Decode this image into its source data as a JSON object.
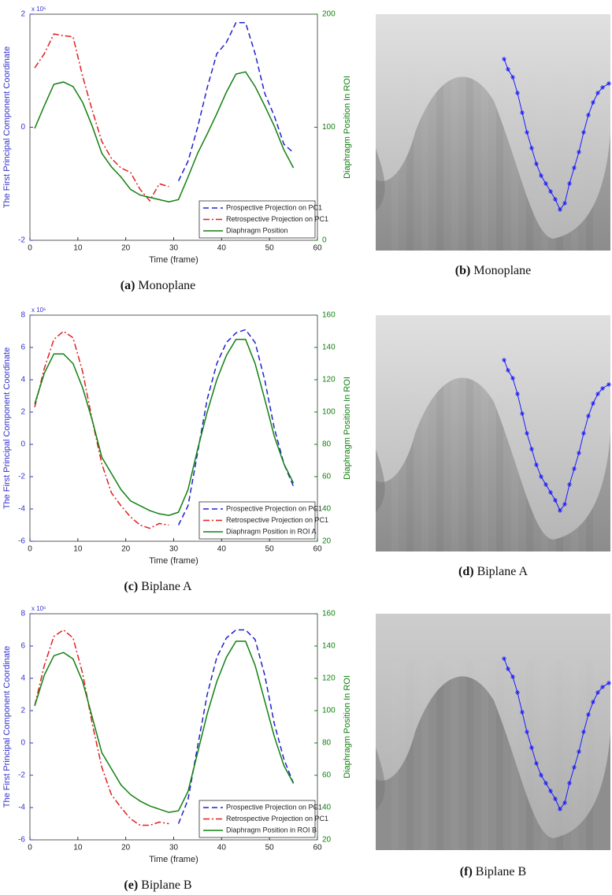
{
  "chart_data": [
    {
      "type": "line",
      "caption_label": "(a)",
      "caption": "Monoplane",
      "exponent_label": "x 10⁶",
      "ylabel": "The First Principal Component Coordinate",
      "y2label": "Diaphragm Position In ROI",
      "xlabel": "Time (frame)",
      "xlim": [
        0,
        60
      ],
      "xticks": [
        0,
        10,
        20,
        30,
        40,
        50,
        60
      ],
      "ylim": [
        -2,
        2
      ],
      "yticks": [
        -2,
        0,
        2
      ],
      "y2lim": [
        0,
        200
      ],
      "y2ticks": [
        0,
        100,
        200
      ],
      "x": [
        1,
        3,
        5,
        7,
        9,
        11,
        13,
        15,
        17,
        19,
        21,
        23,
        25,
        27,
        29,
        31,
        33,
        35,
        37,
        39,
        41,
        43,
        45,
        47,
        49,
        51,
        53,
        55
      ],
      "series": [
        {
          "name": "Prospective Projection on PC1",
          "color": "#2020d0",
          "linestyle": "dashed",
          "values": [
            null,
            null,
            null,
            null,
            null,
            null,
            null,
            null,
            null,
            null,
            null,
            null,
            null,
            null,
            null,
            -0.95,
            -0.6,
            0.0,
            0.7,
            1.3,
            1.5,
            1.85,
            1.85,
            1.3,
            0.6,
            0.2,
            -0.3,
            -0.45
          ]
        },
        {
          "name": "Retrospective Projection on PC1",
          "color": "#e02020",
          "linestyle": "dashdot",
          "values": [
            1.05,
            1.3,
            1.65,
            1.62,
            1.6,
            0.9,
            0.3,
            -0.25,
            -0.55,
            -0.72,
            -0.8,
            -1.1,
            -1.3,
            -1.0,
            -1.05,
            null,
            null,
            null,
            null,
            null,
            null,
            null,
            null,
            null,
            null,
            null,
            null,
            null
          ]
        },
        {
          "name": "Diaphragm Position",
          "color": "#108010",
          "linestyle": "solid",
          "axis": "y2",
          "values": [
            99,
            119,
            138,
            140,
            136,
            122,
            101,
            77,
            65,
            56,
            45,
            40,
            38,
            36,
            34,
            36,
            56,
            77,
            94,
            112,
            131,
            147,
            149,
            136,
            119,
            101,
            80,
            64
          ]
        }
      ]
    },
    {
      "type": "line",
      "caption_label": "(c)",
      "caption": "Biplane A",
      "exponent_label": "x 10⁶",
      "ylabel": "The First Principal Component Coordinate",
      "y2label": "Diaphragm Position In ROI",
      "xlabel": "Time (frame)",
      "xlim": [
        0,
        60
      ],
      "xticks": [
        0,
        10,
        20,
        30,
        40,
        50,
        60
      ],
      "ylim": [
        -6,
        8
      ],
      "yticks": [
        -6,
        -4,
        -2,
        0,
        2,
        4,
        6,
        8
      ],
      "y2lim": [
        20,
        160
      ],
      "y2ticks": [
        20,
        40,
        60,
        80,
        100,
        120,
        140,
        160
      ],
      "x": [
        1,
        3,
        5,
        7,
        9,
        11,
        13,
        15,
        17,
        19,
        21,
        23,
        25,
        27,
        29,
        31,
        33,
        35,
        37,
        39,
        41,
        43,
        45,
        47,
        49,
        51,
        53,
        55
      ],
      "series": [
        {
          "name": "Prospective Projection on PC1",
          "color": "#2020d0",
          "linestyle": "dashed",
          "values": [
            null,
            null,
            null,
            null,
            null,
            null,
            null,
            null,
            null,
            null,
            null,
            null,
            null,
            null,
            null,
            -5.0,
            -3.8,
            -0.5,
            2.8,
            5.0,
            6.3,
            6.9,
            7.1,
            6.3,
            4.0,
            1.0,
            -1.2,
            -2.6
          ]
        },
        {
          "name": "Retrospective Projection on PC1",
          "color": "#e02020",
          "linestyle": "dashdot",
          "values": [
            2.3,
            4.7,
            6.5,
            7.0,
            6.6,
            4.5,
            1.5,
            -1.2,
            -3.0,
            -3.8,
            -4.5,
            -5.0,
            -5.2,
            -4.9,
            -5.0,
            null,
            null,
            null,
            null,
            null,
            null,
            null,
            null,
            null,
            null,
            null,
            null,
            null
          ]
        },
        {
          "name": "Diaphragm Position in ROI A",
          "color": "#108010",
          "linestyle": "solid",
          "axis": "y2",
          "values": [
            105,
            124,
            136,
            136,
            130,
            115,
            95,
            72,
            62,
            52,
            45,
            42,
            39,
            37,
            36,
            38,
            52,
            77,
            100,
            120,
            135,
            145,
            145,
            130,
            108,
            85,
            68,
            56
          ]
        }
      ]
    },
    {
      "type": "line",
      "caption_label": "(e)",
      "caption": "Biplane B",
      "exponent_label": "x 10⁶",
      "ylabel": "The First Principal Component Coordinate",
      "y2label": "Diaphragm Position In ROI",
      "xlabel": "Time (frame)",
      "xlim": [
        0,
        60
      ],
      "xticks": [
        0,
        10,
        20,
        30,
        40,
        50,
        60
      ],
      "ylim": [
        -6,
        8
      ],
      "yticks": [
        -6,
        -4,
        -2,
        0,
        2,
        4,
        6,
        8
      ],
      "y2lim": [
        20,
        160
      ],
      "y2ticks": [
        20,
        40,
        60,
        80,
        100,
        120,
        140,
        160
      ],
      "x": [
        1,
        3,
        5,
        7,
        9,
        11,
        13,
        15,
        17,
        19,
        21,
        23,
        25,
        27,
        29,
        31,
        33,
        35,
        37,
        39,
        41,
        43,
        45,
        47,
        49,
        51,
        53,
        55
      ],
      "series": [
        {
          "name": "Prospective Projection on PC1",
          "color": "#2020d0",
          "linestyle": "dashed",
          "values": [
            null,
            null,
            null,
            null,
            null,
            null,
            null,
            null,
            null,
            null,
            null,
            null,
            null,
            null,
            null,
            -5.0,
            -3.5,
            -0.2,
            3.0,
            5.3,
            6.5,
            7.0,
            7.0,
            6.4,
            4.2,
            1.2,
            -1.0,
            -2.5
          ]
        },
        {
          "name": "Retrospective Projection on PC1",
          "color": "#e02020",
          "linestyle": "dashdot",
          "values": [
            2.3,
            4.8,
            6.6,
            7.0,
            6.5,
            4.3,
            1.2,
            -1.5,
            -3.2,
            -4.0,
            -4.7,
            -5.1,
            -5.1,
            -4.9,
            -5.0,
            null,
            null,
            null,
            null,
            null,
            null,
            null,
            null,
            null,
            null,
            null,
            null,
            null
          ]
        },
        {
          "name": "Diaphragm Position in ROI B",
          "color": "#108010",
          "linestyle": "solid",
          "axis": "y2",
          "values": [
            103,
            122,
            134,
            136,
            132,
            118,
            96,
            74,
            64,
            54,
            48,
            44,
            41,
            39,
            37,
            38,
            50,
            74,
            98,
            118,
            133,
            143,
            143,
            128,
            106,
            84,
            66,
            55
          ]
        }
      ]
    }
  ],
  "images": [
    {
      "caption_label": "(b)",
      "caption": "Monoplane"
    },
    {
      "caption_label": "(d)",
      "caption": "Biplane A"
    },
    {
      "caption_label": "(f)",
      "caption": "Biplane B"
    }
  ]
}
